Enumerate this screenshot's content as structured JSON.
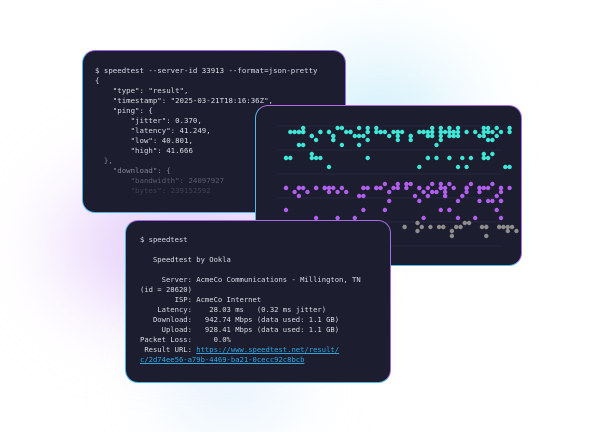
{
  "json_card": {
    "command": "$ speedtest --server-id 33913 --format=json-pretty",
    "lines": [
      "{",
      "    \"type\": \"result\",",
      "    \"timestamp\": \"2025-03-21T18:16:36Z\",",
      "    \"ping\": {",
      "        \"jitter\": 0.370,",
      "        \"latency\": 41.249,",
      "        \"low\": 40.801,",
      "        \"high\": 41.666",
      "  },",
      "    \"download\": {",
      "        \"bandwidth\": 24097927",
      "        \"bytes\": 239152592"
    ]
  },
  "chart_card": {
    "colors": {
      "download": "#3ee8d8",
      "upload": "#b25ff0",
      "latency": "#8f8c8c",
      "grid": "#2a2d48"
    }
  },
  "result_card": {
    "command": "$ speedtest",
    "title": "   Speedtest by Ookla",
    "lines": [
      "     Server: AcmeCo Communications - Millington, TN",
      "(id = 28620)",
      "        ISP: AcmeCo Internet",
      "    Latency:    28.03 ms   (0.32 ms jitter)",
      "   Download:   942.74 Mbps (data used: 1.1 GB)",
      "     Upload:   928.41 Mbps (data used: 1.1 GB)",
      "Packet Loss:     0.0%"
    ],
    "url_label": " Result URL: ",
    "url_line1": "https://www.speedtest.net/result/",
    "url_line2": "c/2d74ee56-a79b-4469-ba21-0cecc92c8bcb"
  }
}
